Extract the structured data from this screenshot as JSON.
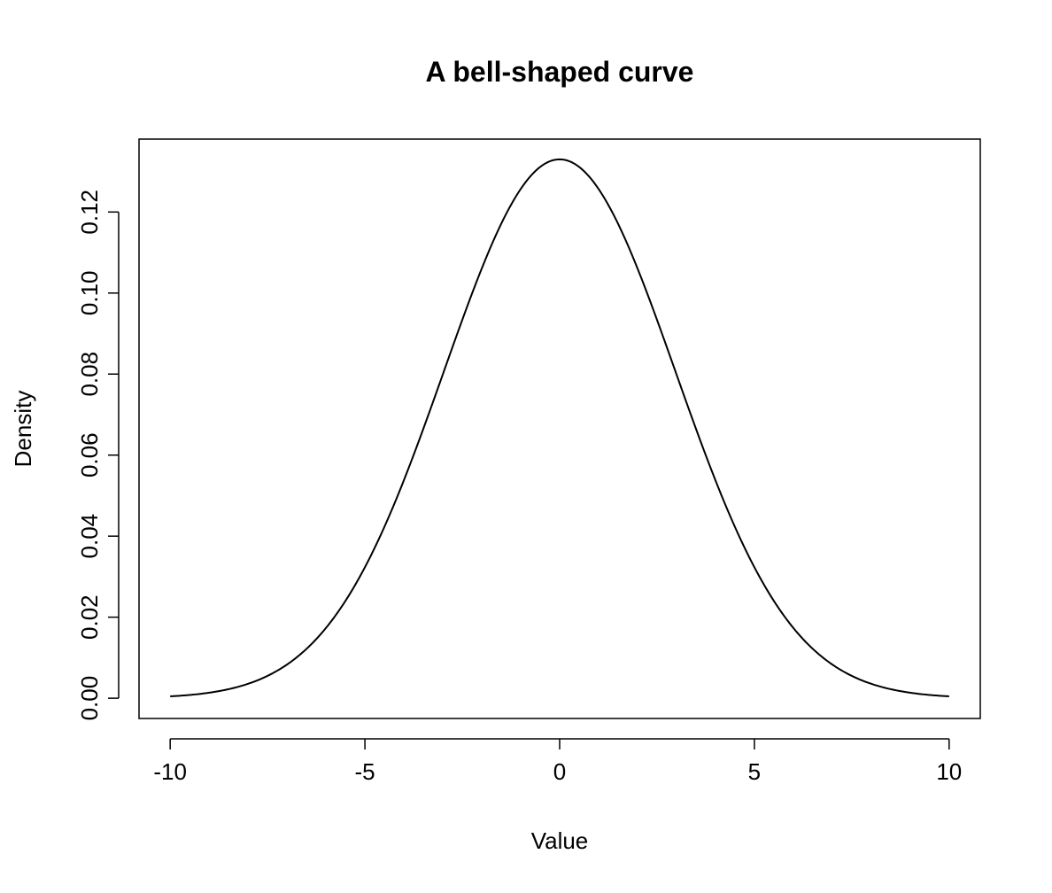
{
  "chart_data": {
    "type": "line",
    "title": "A bell-shaped curve",
    "xlabel": "Value",
    "ylabel": "Density",
    "xlim": [
      -10.8,
      10.8
    ],
    "ylim": [
      -0.005,
      0.138
    ],
    "x_ticks": [
      -10,
      -5,
      0,
      5,
      10
    ],
    "x_tick_labels": [
      "-10",
      "-5",
      "0",
      "5",
      "10"
    ],
    "y_ticks": [
      0.0,
      0.02,
      0.04,
      0.06,
      0.08,
      0.1,
      0.12
    ],
    "y_tick_labels": [
      "0.00",
      "0.02",
      "0.04",
      "0.06",
      "0.08",
      "0.10",
      "0.12"
    ],
    "grid": false,
    "legend": "none",
    "line_color": "#000000",
    "series": [
      {
        "x": [
          -10,
          -9.5,
          -9,
          -8.5,
          -8,
          -7.5,
          -7,
          -6.5,
          -6,
          -5.5,
          -5,
          -4.5,
          -4,
          -3.5,
          -3,
          -2.5,
          -2,
          -1.5,
          -1,
          -0.5,
          0,
          0.5,
          1,
          1.5,
          2,
          2.5,
          3,
          3.5,
          4,
          4.5,
          5,
          5.5,
          6,
          6.5,
          7,
          7.5,
          8,
          8.5,
          9,
          9.5,
          10
        ],
        "y": [
          0.0005,
          0.001,
          0.0018,
          0.003,
          0.0048,
          0.0074,
          0.011,
          0.0159,
          0.0222,
          0.03,
          0.0392,
          0.0497,
          0.061,
          0.0726,
          0.0839,
          0.0941,
          0.1027,
          0.1091,
          0.1128,
          0.1324,
          0.133,
          0.1324,
          0.1128,
          0.1091,
          0.1027,
          0.0941,
          0.0839,
          0.0726,
          0.061,
          0.0497,
          0.0392,
          0.03,
          0.0222,
          0.0159,
          0.011,
          0.0074,
          0.0048,
          0.003,
          0.0018,
          0.001,
          0.0005
        ]
      }
    ]
  }
}
